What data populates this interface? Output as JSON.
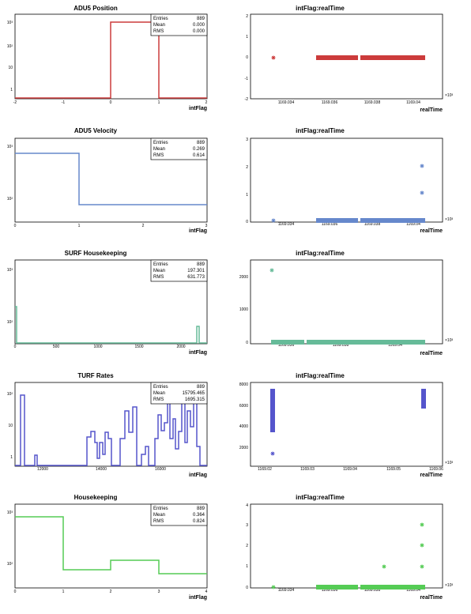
{
  "chart_data": [
    {
      "type": "histogram",
      "title": "ADU5 Position",
      "xlabel": "intFlag",
      "color": "#cc3b3b",
      "xlim": [
        -2,
        2
      ],
      "x_ticks": [
        "-2",
        "-1",
        "0",
        "1",
        "2"
      ],
      "y_scale": "log",
      "y_ticks": [
        "10³",
        "10²",
        "10",
        "1"
      ],
      "stats": {
        "entries_label": "Entries",
        "entries": "889",
        "mean_label": "Mean",
        "mean": "0.000",
        "rms_label": "RMS",
        "rms": "0.000"
      },
      "bins": [
        {
          "x0": 0,
          "x1": 1,
          "value": 889
        }
      ]
    },
    {
      "type": "scatter",
      "title": "intFlag:realTime",
      "xlabel": "realTime",
      "color": "#cc3b3b",
      "x_ticks": [
        "1169.034",
        "1169.036",
        "1169.038",
        "1169.04"
      ],
      "y_ticks": [
        "2",
        "1",
        "0",
        "-1",
        "-2"
      ],
      "x_exponent": "×10³",
      "points": [
        {
          "x": 1169.0333,
          "y": 0
        }
      ],
      "clusters": [
        {
          "x0": 1169.0355,
          "x1": 1169.0369,
          "y": 0
        },
        {
          "x0": 1169.037,
          "x1": 1169.0412,
          "y": 0
        }
      ]
    },
    {
      "type": "histogram",
      "title": "ADU5 Velocity",
      "xlabel": "intFlag",
      "color": "#6688cc",
      "xlim": [
        0,
        3
      ],
      "x_ticks": [
        "0",
        "1",
        "2",
        "3"
      ],
      "y_scale": "log",
      "y_ticks": [
        "10³",
        "10²"
      ],
      "stats": {
        "entries_label": "Entries",
        "entries": "889",
        "mean_label": "Mean",
        "mean": "0.269",
        "rms_label": "RMS",
        "rms": "0.614"
      },
      "bins": [
        {
          "x0": 0,
          "x1": 1,
          "value": 750
        },
        {
          "x0": 1,
          "x1": 3,
          "value": 80
        }
      ]
    },
    {
      "type": "scatter",
      "title": "intFlag:realTime",
      "xlabel": "realTime",
      "color": "#6688cc",
      "x_ticks": [
        "1169.034",
        "1169.036",
        "1169.038",
        "1169.04"
      ],
      "y_ticks": [
        "3",
        "2",
        "1",
        "0"
      ],
      "x_exponent": "×10³",
      "points": [
        {
          "x": 1169.0332,
          "y": 0
        },
        {
          "x": 1169.0405,
          "y": 2
        },
        {
          "x": 1169.0405,
          "y": 1
        }
      ],
      "clusters": [
        {
          "x0": 1169.0355,
          "x1": 1169.0369,
          "y": 0
        },
        {
          "x0": 1169.037,
          "x1": 1169.0412,
          "y": 0
        }
      ]
    },
    {
      "type": "histogram",
      "title": "SURF Housekeeping",
      "xlabel": "intFlag",
      "color": "#66bb99",
      "xlim": [
        0,
        2200
      ],
      "x_ticks": [
        "0",
        "500",
        "1000",
        "1500",
        "2000"
      ],
      "y_scale": "log",
      "y_ticks": [
        "10³",
        "10²"
      ],
      "stats": {
        "entries_label": "Entries",
        "entries": "889",
        "mean_label": "Mean",
        "mean": "197.301",
        "rms_label": "RMS",
        "rms": "631.773"
      },
      "bins": [
        {
          "x0": 0,
          "x1": 15,
          "value": 80
        },
        {
          "x0": 2130,
          "x1": 2160,
          "value": 80
        }
      ]
    },
    {
      "type": "scatter",
      "title": "intFlag:realTime",
      "xlabel": "realTime",
      "color": "#66bb99",
      "x_ticks": [
        "1169.036",
        "1169.038",
        "1169.04"
      ],
      "y_ticks": [
        "2000",
        "1000",
        "0"
      ],
      "x_exponent": "×10³",
      "points": [
        {
          "x": 1169.0333,
          "y": 2200
        }
      ],
      "clusters": [
        {
          "x0": 1169.0339,
          "x1": 1169.0352,
          "y": 0
        },
        {
          "x0": 1169.0355,
          "x1": 1169.0412,
          "y": 0
        }
      ]
    },
    {
      "type": "histogram",
      "title": "TURF Rates",
      "xlabel": "intFlag",
      "color": "#5555cc",
      "xlim": [
        11000,
        17000
      ],
      "x_ticks": [
        "12000",
        "14000",
        "16000"
      ],
      "y_scale": "log",
      "y_ticks": [
        "10²",
        "10",
        "1"
      ],
      "stats": {
        "entries_label": "Entries",
        "entries": "889",
        "mean_label": "Mean",
        "mean": "15795.465",
        "rms_label": "RMS",
        "rms": "1695.315"
      }
    },
    {
      "type": "scatter",
      "title": "intFlag:realTime",
      "xlabel": "realTime",
      "color": "#5555cc",
      "x_ticks": [
        "1169.02",
        "1169.03",
        "1169.04",
        "1169.05",
        "1169.06"
      ],
      "y_ticks": [
        "8000",
        "6000",
        "4000",
        "2000"
      ],
      "x_exponent": "×10³",
      "points": [
        {
          "x": 1169.0222,
          "y": 1300
        }
      ],
      "clusters": [
        {
          "x": 1169.0222,
          "y0": 3500,
          "y1": 7500
        },
        {
          "x": 1169.0568,
          "y0": 5800,
          "y1": 7500
        }
      ]
    },
    {
      "type": "histogram",
      "title": "Housekeeping",
      "xlabel": "intFlag",
      "color": "#55cc55",
      "xlim": [
        0,
        4
      ],
      "x_ticks": [
        "0",
        "1",
        "2",
        "3",
        "4"
      ],
      "y_scale": "log",
      "y_ticks": [
        "10³",
        "10²"
      ],
      "stats": {
        "entries_label": "Entries",
        "entries": "889",
        "mean_label": "Mean",
        "mean": "0.364",
        "rms_label": "RMS",
        "rms": "0.824"
      },
      "bins": [
        {
          "x0": 0,
          "x1": 1,
          "value": 700
        },
        {
          "x0": 1,
          "x1": 2,
          "value": 45
        },
        {
          "x0": 2,
          "x1": 3,
          "value": 80
        },
        {
          "x0": 3,
          "x1": 4,
          "value": 35
        }
      ]
    },
    {
      "type": "scatter",
      "title": "intFlag:realTime",
      "xlabel": "realTime",
      "color": "#55cc55",
      "x_ticks": [
        "1169.034",
        "1169.036",
        "1169.038",
        "1169.04"
      ],
      "y_ticks": [
        "4",
        "3",
        "2",
        "1",
        "0"
      ],
      "x_exponent": "×10³",
      "points": [
        {
          "x": 1169.0332,
          "y": 0
        },
        {
          "x": 1169.0375,
          "y": 1
        },
        {
          "x": 1169.0405,
          "y": 3
        },
        {
          "x": 1169.0405,
          "y": 2
        },
        {
          "x": 1169.0405,
          "y": 1
        }
      ],
      "clusters": [
        {
          "x0": 1169.0355,
          "x1": 1169.0369,
          "y": 0
        },
        {
          "x0": 1169.037,
          "x1": 1169.0412,
          "y": 0
        }
      ]
    }
  ]
}
